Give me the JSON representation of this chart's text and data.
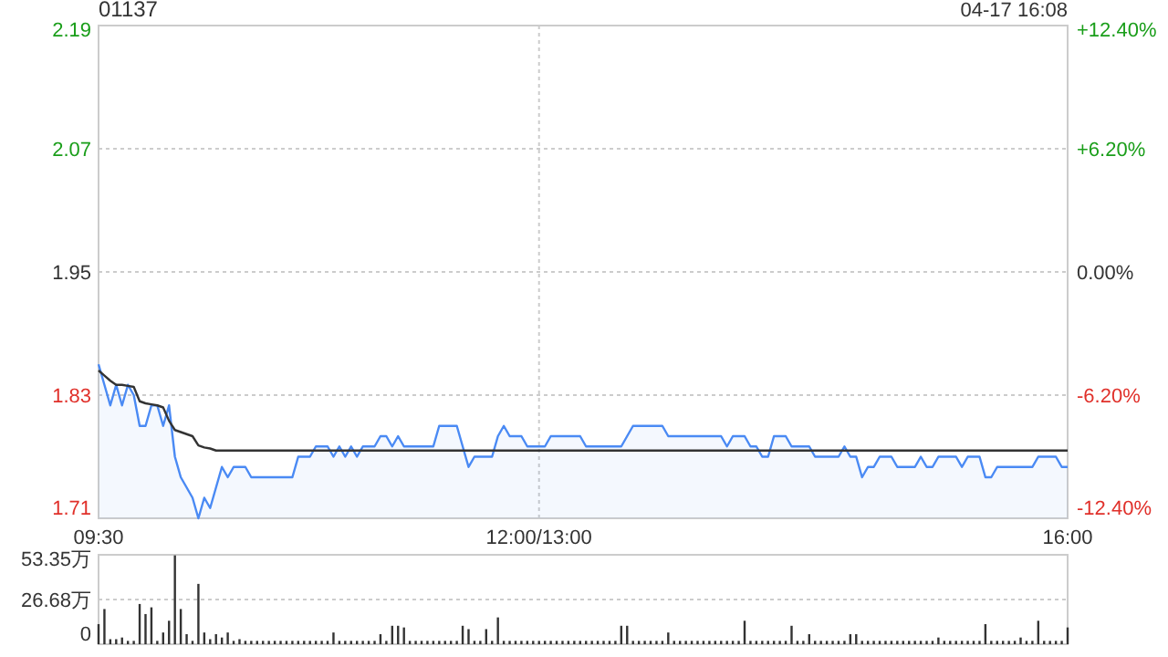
{
  "chart_data": [
    {
      "type": "line",
      "title": "01137",
      "annotations": [
        "04-17 16:08"
      ],
      "categories": [
        "09:30",
        null,
        null,
        null,
        null,
        null,
        null,
        null,
        null,
        null,
        null,
        null,
        null,
        null,
        null,
        null,
        null,
        null,
        null,
        null,
        null,
        null,
        null,
        null,
        null,
        null,
        null,
        null,
        null,
        null,
        null,
        null,
        null,
        null,
        null,
        null,
        null,
        null,
        null,
        null,
        null,
        null,
        null,
        null,
        null,
        null,
        null,
        null,
        null,
        null,
        null,
        null,
        null,
        null,
        null,
        null,
        null,
        null,
        null,
        null,
        null,
        null,
        null,
        null,
        null,
        null,
        null,
        null,
        null,
        null,
        null,
        null,
        null,
        null,
        null,
        "12:00/13:00",
        null,
        null,
        null,
        null,
        null,
        null,
        null,
        null,
        null,
        null,
        null,
        null,
        null,
        null,
        null,
        null,
        null,
        null,
        null,
        null,
        null,
        null,
        null,
        null,
        null,
        null,
        null,
        null,
        null,
        null,
        null,
        null,
        null,
        null,
        null,
        null,
        null,
        null,
        null,
        null,
        null,
        null,
        null,
        null,
        null,
        null,
        null,
        null,
        null,
        null,
        null,
        null,
        null,
        null,
        null,
        null,
        null,
        null,
        null,
        null,
        null,
        null,
        null,
        null,
        null,
        null,
        null,
        null,
        null,
        null,
        null,
        null,
        null,
        null,
        null,
        null,
        null,
        null,
        null,
        null,
        null,
        null,
        null,
        null,
        null,
        null,
        null,
        null,
        null,
        "16:00"
      ],
      "ylim": [
        1.71,
        2.19
      ],
      "yticks": [
        1.71,
        1.83,
        1.95,
        2.07,
        2.19
      ],
      "y2lim": [
        -12.4,
        12.4
      ],
      "y2ticks": [
        {
          "value": -12.4,
          "label": "-12.40%"
        },
        {
          "value": -6.2,
          "label": "-6.20%"
        },
        {
          "value": 0,
          "label": "0.00%"
        },
        {
          "value": 6.2,
          "label": "+6.20%"
        },
        {
          "value": 12.4,
          "label": "+12.40%"
        }
      ],
      "grid": true,
      "series": [
        {
          "type": "area",
          "color": "#4a8af4",
          "values": [
            1.86,
            1.84,
            1.82,
            1.84,
            1.82,
            1.84,
            1.83,
            1.8,
            1.8,
            1.82,
            1.82,
            1.8,
            1.82,
            1.77,
            1.75,
            1.74,
            1.73,
            1.71,
            1.73,
            1.72,
            1.74,
            1.76,
            1.75,
            1.76,
            1.76,
            1.76,
            1.75,
            1.75,
            1.75,
            1.75,
            1.75,
            1.75,
            1.75,
            1.75,
            1.77,
            1.77,
            1.77,
            1.78,
            1.78,
            1.78,
            1.77,
            1.78,
            1.77,
            1.78,
            1.77,
            1.78,
            1.78,
            1.78,
            1.79,
            1.79,
            1.78,
            1.79,
            1.78,
            1.78,
            1.78,
            1.78,
            1.78,
            1.78,
            1.8,
            1.8,
            1.8,
            1.8,
            1.78,
            1.76,
            1.77,
            1.77,
            1.77,
            1.77,
            1.79,
            1.8,
            1.79,
            1.79,
            1.79,
            1.78,
            1.78,
            1.78,
            1.78,
            1.79,
            1.79,
            1.79,
            1.79,
            1.79,
            1.79,
            1.78,
            1.78,
            1.78,
            1.78,
            1.78,
            1.78,
            1.78,
            1.79,
            1.8,
            1.8,
            1.8,
            1.8,
            1.8,
            1.8,
            1.79,
            1.79,
            1.79,
            1.79,
            1.79,
            1.79,
            1.79,
            1.79,
            1.79,
            1.79,
            1.78,
            1.79,
            1.79,
            1.79,
            1.78,
            1.78,
            1.77,
            1.77,
            1.79,
            1.79,
            1.79,
            1.78,
            1.78,
            1.78,
            1.78,
            1.77,
            1.77,
            1.77,
            1.77,
            1.77,
            1.78,
            1.77,
            1.77,
            1.75,
            1.76,
            1.76,
            1.77,
            1.77,
            1.77,
            1.76,
            1.76,
            1.76,
            1.76,
            1.77,
            1.76,
            1.76,
            1.77,
            1.77,
            1.77,
            1.77,
            1.76,
            1.77,
            1.77,
            1.77,
            1.75,
            1.75,
            1.76,
            1.76,
            1.76,
            1.76,
            1.76,
            1.76,
            1.76,
            1.77,
            1.77,
            1.77,
            1.77,
            1.76,
            1.76
          ]
        },
        {
          "type": "line",
          "color": "#333333",
          "values": [
            1.854,
            1.849,
            1.844,
            1.84,
            1.84,
            1.839,
            1.838,
            1.824,
            1.822,
            1.821,
            1.82,
            1.818,
            1.805,
            1.796,
            1.794,
            1.792,
            1.79,
            1.781,
            1.779,
            1.778,
            1.776,
            1.776,
            1.776,
            1.776,
            1.776,
            1.776,
            1.776,
            1.776,
            1.776,
            1.776,
            1.776,
            1.776,
            1.776,
            1.776,
            1.776,
            1.776,
            1.776,
            1.776,
            1.776,
            1.776,
            1.776,
            1.776,
            1.776,
            1.776,
            1.776,
            1.776,
            1.776,
            1.776,
            1.776,
            1.776,
            1.776,
            1.776,
            1.776,
            1.776,
            1.776,
            1.776,
            1.776,
            1.776,
            1.776,
            1.776,
            1.776,
            1.776,
            1.776,
            1.776,
            1.776,
            1.776,
            1.776,
            1.776,
            1.776,
            1.776,
            1.776,
            1.776,
            1.776,
            1.776,
            1.776,
            1.776,
            1.776,
            1.776,
            1.776,
            1.776,
            1.776,
            1.776,
            1.776,
            1.776,
            1.776,
            1.776,
            1.776,
            1.776,
            1.776,
            1.776,
            1.776,
            1.776,
            1.776,
            1.776,
            1.776,
            1.776,
            1.776,
            1.776,
            1.776,
            1.776,
            1.776,
            1.776,
            1.776,
            1.776,
            1.776,
            1.776,
            1.776,
            1.776,
            1.776,
            1.776,
            1.776,
            1.776,
            1.776,
            1.776,
            1.776,
            1.776,
            1.776,
            1.776,
            1.776,
            1.776,
            1.776,
            1.776,
            1.776,
            1.776,
            1.776,
            1.776,
            1.776,
            1.776,
            1.776,
            1.776,
            1.776,
            1.776,
            1.776,
            1.776,
            1.776,
            1.776,
            1.776,
            1.776,
            1.776,
            1.776,
            1.776,
            1.776,
            1.776,
            1.776,
            1.776,
            1.776,
            1.776,
            1.776,
            1.776,
            1.776,
            1.776,
            1.776,
            1.776,
            1.776,
            1.776,
            1.776,
            1.776,
            1.776,
            1.776,
            1.776,
            1.776,
            1.776,
            1.776,
            1.776,
            1.776,
            1.776
          ]
        }
      ]
    },
    {
      "type": "bar",
      "ylim": [
        0,
        53.35
      ],
      "yticks": [
        {
          "value": 0,
          "label": "0"
        },
        {
          "value": 26.68,
          "label": "26.68万"
        },
        {
          "value": 53.35,
          "label": "53.35万"
        }
      ],
      "grid": "y",
      "tick_labels": "y",
      "color": "#333333",
      "categories": [
        null,
        null,
        null,
        null,
        null,
        null,
        null,
        null,
        null,
        null,
        null,
        null,
        null,
        null,
        null,
        null,
        null,
        null,
        null,
        null,
        null,
        null,
        null,
        null,
        null,
        null,
        null,
        null,
        null,
        null,
        null,
        null,
        null,
        null,
        null,
        null,
        null,
        null,
        null,
        null,
        null,
        null,
        null,
        null,
        null,
        null,
        null,
        null,
        null,
        null,
        null,
        null,
        null,
        null,
        null,
        null,
        null,
        null,
        null,
        null,
        null,
        null,
        null,
        null,
        null,
        null,
        null,
        null,
        null,
        null,
        null,
        null,
        null,
        null,
        null,
        null,
        null,
        null,
        null,
        null,
        null,
        null,
        null,
        null,
        null,
        null,
        null,
        null,
        null,
        null,
        null,
        null,
        null,
        null,
        null,
        null,
        null,
        null,
        null,
        null,
        null,
        null,
        null,
        null,
        null,
        null,
        null,
        null,
        null,
        null,
        null,
        null,
        null,
        null,
        null,
        null,
        null,
        null,
        null,
        null,
        null,
        null,
        null,
        null,
        null,
        null,
        null,
        null,
        null,
        null,
        null,
        null,
        null,
        null,
        null,
        null,
        null,
        null,
        null,
        null,
        null,
        null,
        null,
        null,
        null,
        null,
        null,
        null,
        null,
        null,
        null,
        null,
        null,
        null,
        null,
        null,
        null,
        null,
        null,
        null,
        null,
        null,
        null,
        null,
        null,
        null
      ],
      "values": [
        12,
        21,
        3,
        3,
        4,
        2,
        2,
        24,
        18,
        22,
        2,
        7,
        14,
        53,
        21,
        6,
        2,
        36,
        7,
        3,
        6,
        4,
        7,
        2,
        3,
        2,
        2,
        2,
        2,
        2,
        2,
        2,
        2,
        2,
        2,
        2,
        2,
        2,
        2,
        2,
        7,
        2,
        2,
        2,
        2,
        2,
        2,
        2,
        6,
        2,
        11,
        11,
        10,
        2,
        2,
        2,
        2,
        2,
        2,
        2,
        2,
        2,
        11,
        9,
        2,
        2,
        9,
        2,
        16,
        2,
        2,
        2,
        2,
        2,
        2,
        2,
        2,
        2,
        2,
        2,
        2,
        2,
        2,
        2,
        2,
        2,
        2,
        2,
        2,
        11,
        11,
        2,
        2,
        2,
        2,
        2,
        2,
        7,
        2,
        2,
        2,
        2,
        2,
        2,
        2,
        2,
        2,
        2,
        2,
        2,
        14,
        2,
        2,
        2,
        2,
        2,
        2,
        2,
        11,
        2,
        2,
        6,
        2,
        2,
        2,
        2,
        2,
        2,
        6,
        6,
        2,
        2,
        2,
        2,
        2,
        2,
        2,
        2,
        2,
        2,
        2,
        2,
        2,
        4,
        2,
        2,
        2,
        2,
        2,
        2,
        2,
        12,
        2,
        2,
        2,
        2,
        2,
        4,
        2,
        2,
        14,
        2,
        2,
        2,
        2,
        10
      ]
    }
  ]
}
